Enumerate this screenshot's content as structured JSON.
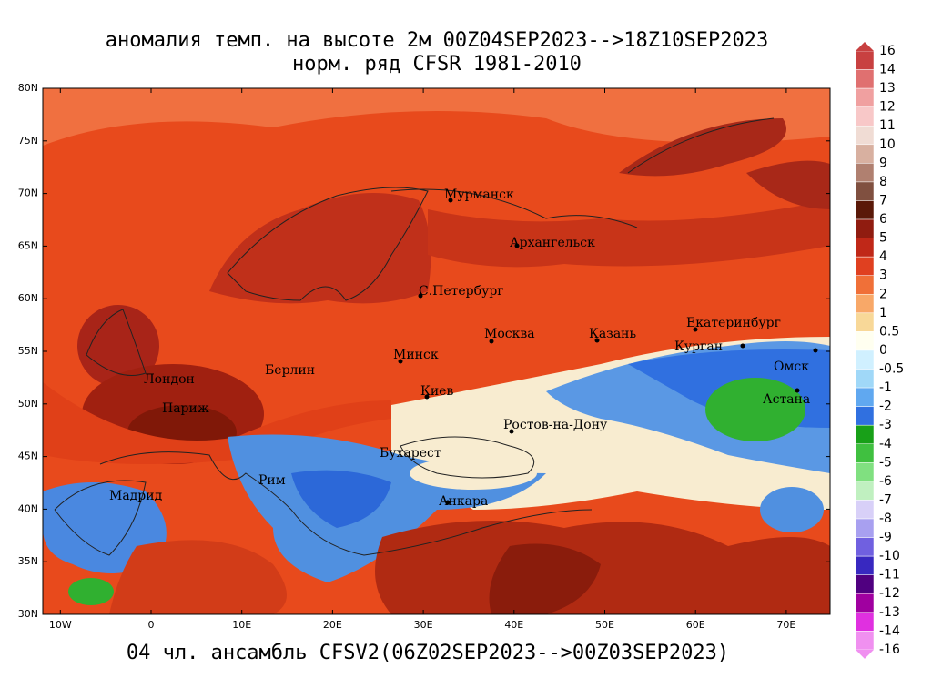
{
  "title": [
    "аномалия темп. на высоте 2м 00Z04SEP2023-->18Z10SEP2023",
    "норм. ряд CFSR 1981-2010"
  ],
  "footer": "04 чл. ансамбль CFSV2(06Z02SEP2023-->00Z03SEP2023)",
  "lat_ticks": [
    {
      "value": 80,
      "label": "80N"
    },
    {
      "value": 75,
      "label": "75N"
    },
    {
      "value": 70,
      "label": "70N"
    },
    {
      "value": 65,
      "label": "65N"
    },
    {
      "value": 60,
      "label": "60N"
    },
    {
      "value": 55,
      "label": "55N"
    },
    {
      "value": 50,
      "label": "50N"
    },
    {
      "value": 45,
      "label": "45N"
    },
    {
      "value": 40,
      "label": "40N"
    },
    {
      "value": 35,
      "label": "35N"
    },
    {
      "value": 30,
      "label": "30N"
    }
  ],
  "lon_ticks": [
    {
      "value": -10,
      "label": "10W"
    },
    0,
    {
      "value": 10,
      "label": "10E"
    },
    {
      "value": 20,
      "label": "20E"
    },
    {
      "value": 30,
      "label": "30E"
    },
    {
      "value": 40,
      "label": "40E"
    },
    {
      "value": 50,
      "label": "50E"
    },
    {
      "value": 60,
      "label": "60E"
    },
    {
      "value": 70,
      "label": "70E"
    }
  ],
  "cities": [
    "Мурманск",
    "Архангельск",
    "С.Петербург",
    "Москва",
    "Казань",
    "Екатеринбург",
    "Курган",
    "Омск",
    "Астана",
    "Минск",
    "Берлин",
    "Лондон",
    "Париж",
    "Киев",
    "Ростов-на-Дону",
    "Бухарест",
    "Рим",
    "Мадрид",
    "Анкара"
  ],
  "colorbar": {
    "levels": [
      16,
      14,
      13,
      12,
      11,
      10,
      9,
      8,
      7,
      6,
      5,
      4,
      3,
      2,
      1,
      0.5,
      0,
      -0.5,
      -1,
      -2,
      -3,
      -4,
      -5,
      -6,
      -7,
      -8,
      -9,
      -10,
      -11,
      -12,
      -13,
      -14,
      -16
    ],
    "colors": [
      "#c84040",
      "#e07070",
      "#f0a0a0",
      "#f8c8c8",
      "#f0dcd4",
      "#d8b0a0",
      "#b08070",
      "#805040",
      "#5a1808",
      "#901c10",
      "#c02818",
      "#e04020",
      "#f07038",
      "#f8a868",
      "#f8d898",
      "#fffff0",
      "#d0f0ff",
      "#a0d8f8",
      "#60a8f0",
      "#3070e0",
      "#18a018",
      "#40c040",
      "#80e080",
      "#c0f0c0",
      "#d8d0f8",
      "#a8a0f0",
      "#7060e0",
      "#3828c0",
      "#500080",
      "#a000a0",
      "#e030e0",
      "#f090f0"
    ]
  }
}
